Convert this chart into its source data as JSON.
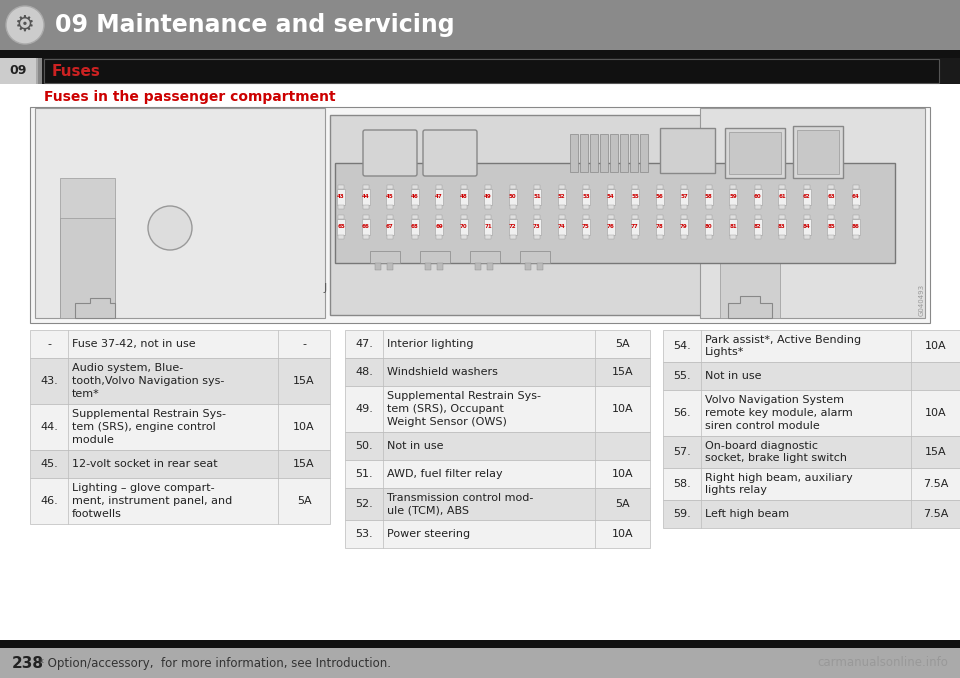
{
  "header_bg": "#8a8a8a",
  "header_text": "09 Maintenance and servicing",
  "header_text_color": "#ffffff",
  "section_label": "Fuses",
  "side_label": "09",
  "subtitle": "Fuses in the passenger compartment",
  "subtitle_color": "#cc0000",
  "footer_bg": "#aaaaaa",
  "footer_page": "238",
  "footer_note": "* Option/accessory,  for more information, see Introduction.",
  "footer_watermark": "carmanualsonline.info",
  "table_row_odd": "#f2f2f2",
  "table_row_even": "#e0e0e0",
  "table_border": "#bbbbbb",
  "col1_left": [
    [
      "-",
      "Fuse 37-42, not in use",
      "-"
    ],
    [
      "43.",
      "Audio system, Blue-\ntooth,Volvo Navigation sys-\ntem*",
      "15A"
    ],
    [
      "44.",
      "Supplemental Restrain Sys-\ntem (SRS), engine control\nmodule",
      "10A"
    ],
    [
      "45.",
      "12-volt socket in rear seat",
      "15A"
    ],
    [
      "46.",
      "Lighting – glove compart-\nment, instrument panel, and\nfootwells",
      "5A"
    ]
  ],
  "col2_mid": [
    [
      "47.",
      "Interior lighting",
      "5A"
    ],
    [
      "48.",
      "Windshield washers",
      "15A"
    ],
    [
      "49.",
      "Supplemental Restrain Sys-\ntem (SRS), Occupant\nWeight Sensor (OWS)",
      "10A"
    ],
    [
      "50.",
      "Not in use",
      ""
    ],
    [
      "51.",
      "AWD, fuel filter relay",
      "10A"
    ],
    [
      "52.",
      "Transmission control mod-\nule (TCM), ABS",
      "5A"
    ],
    [
      "53.",
      "Power steering",
      "10A"
    ]
  ],
  "col3_right": [
    [
      "54.",
      "Park assist*, Active Bending\nLights*",
      "10A"
    ],
    [
      "55.",
      "Not in use",
      ""
    ],
    [
      "56.",
      "Volvo Navigation System\nremote key module, alarm\nsiren control module",
      "10A"
    ],
    [
      "57.",
      "On-board diagnostic\nsocket, brake light switch",
      "15A"
    ],
    [
      "58.",
      "Right high beam, auxiliary\nlights relay",
      "7.5A"
    ],
    [
      "59.",
      "Left high beam",
      "7.5A"
    ]
  ]
}
